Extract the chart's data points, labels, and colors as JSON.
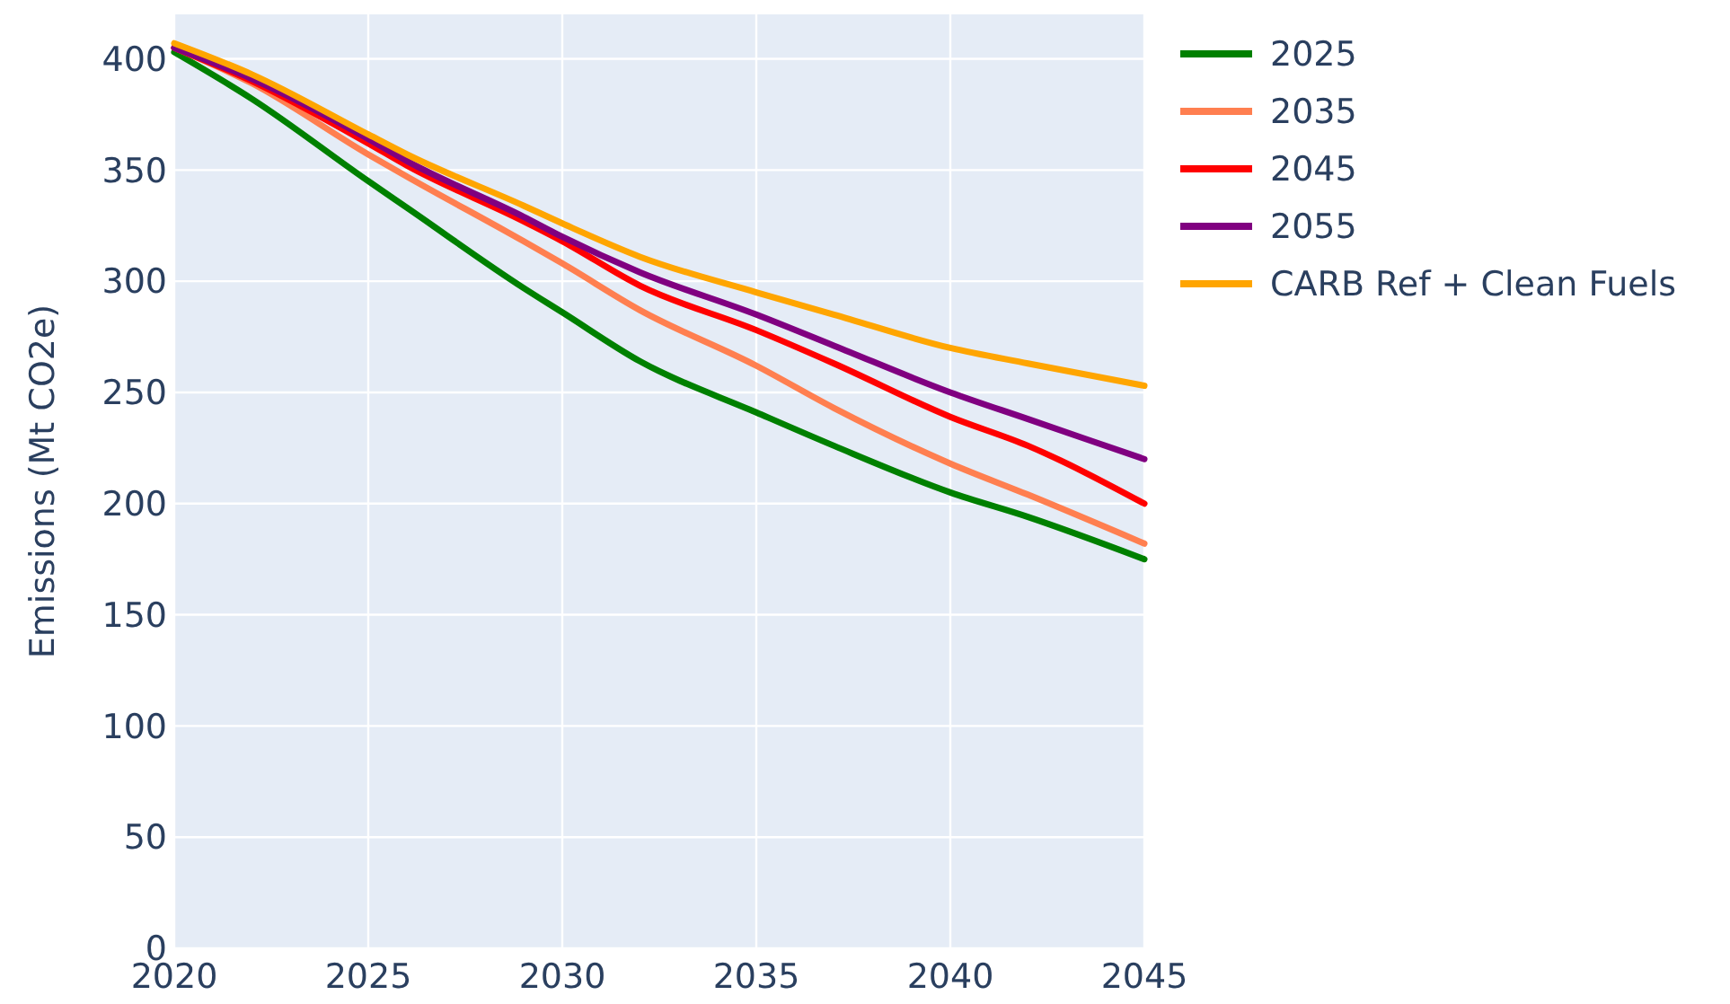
{
  "chart_data": {
    "type": "line",
    "ylabel": "Emissions (Mt CO2e)",
    "x": [
      2020,
      2022,
      2025,
      2026,
      2029,
      2030,
      2032,
      2035,
      2037,
      2040,
      2042,
      2045
    ],
    "xlim": [
      2020,
      2045
    ],
    "xticks": [
      2020,
      2025,
      2030,
      2035,
      2040,
      2045
    ],
    "ylim": [
      0,
      420
    ],
    "yticks": [
      0,
      50,
      100,
      150,
      200,
      250,
      300,
      350,
      400
    ],
    "grid": true,
    "legend": "right",
    "line_style": "solid",
    "marker": "none",
    "series": [
      {
        "name": "2025",
        "color": "#008000",
        "values": [
          403,
          382,
          345,
          333,
          297,
          286,
          264,
          241,
          226,
          205,
          194,
          175
        ]
      },
      {
        "name": "2035",
        "color": "#ff7f50",
        "values": [
          405,
          389,
          357,
          347,
          318,
          308,
          287,
          262,
          243,
          218,
          204,
          182
        ]
      },
      {
        "name": "2045",
        "color": "#ff0000",
        "values": [
          405,
          390,
          362,
          352,
          327,
          318,
          298,
          278,
          263,
          239,
          226,
          200
        ]
      },
      {
        "name": "2055",
        "color": "#800080",
        "values": [
          405,
          391,
          364,
          354,
          329,
          320,
          304,
          285,
          271,
          250,
          238,
          220
        ]
      },
      {
        "name": "CARB Ref + Clean Fuels",
        "color": "#ffa500",
        "values": [
          407,
          393,
          366,
          357,
          334,
          326,
          311,
          295,
          285,
          270,
          263,
          253
        ]
      }
    ]
  }
}
